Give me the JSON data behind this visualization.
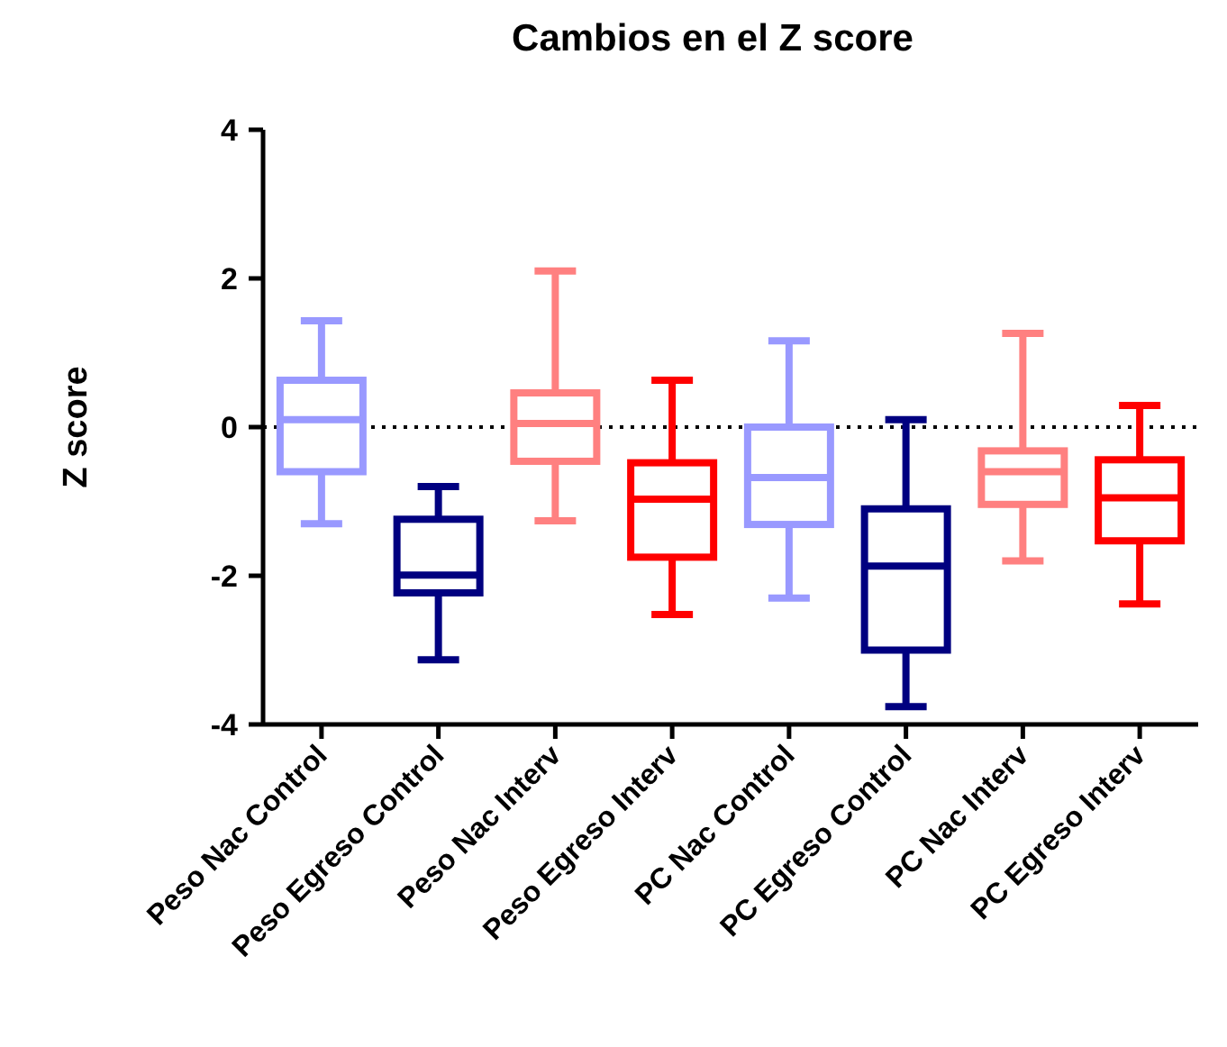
{
  "chart_data": {
    "type": "box",
    "title": "Cambios en el Z score",
    "ylabel": "Z score",
    "categories": [
      "Peso Nac Control",
      "Peso Egreso Control",
      "Peso Nac Interv",
      "Peso Egreso Interv",
      "PC Nac Control",
      "PC Egreso Control",
      "PC Nac Interv",
      "PC Egreso Interv"
    ],
    "colors": [
      "#9999ff",
      "#000080",
      "#ff8080",
      "#ff0000",
      "#9999ff",
      "#000080",
      "#ff8080",
      "#ff0000"
    ],
    "boxes": [
      {
        "low": -1.3,
        "q1": -0.6,
        "median": 0.1,
        "q3": 0.63,
        "high": 1.43
      },
      {
        "low": -3.13,
        "q1": -2.23,
        "median": -1.99,
        "q3": -1.24,
        "high": -0.8
      },
      {
        "low": -1.26,
        "q1": -0.46,
        "median": 0.05,
        "q3": 0.46,
        "high": 2.1
      },
      {
        "low": -2.52,
        "q1": -1.75,
        "median": -0.97,
        "q3": -0.48,
        "high": 0.63
      },
      {
        "low": -2.3,
        "q1": -1.31,
        "median": -0.68,
        "q3": 0,
        "high": 1.16
      },
      {
        "low": -3.76,
        "q1": -3.0,
        "median": -1.87,
        "q3": -1.1,
        "high": 0.1
      },
      {
        "low": -1.8,
        "q1": -1.04,
        "median": -0.6,
        "q3": -0.32,
        "high": 1.26
      },
      {
        "low": -2.38,
        "q1": -1.53,
        "median": -0.95,
        "q3": -0.44,
        "high": 0.29
      }
    ],
    "ylim": [
      -4,
      4
    ],
    "yticks": [
      -4,
      -2,
      0,
      2,
      4
    ],
    "ref_lines": [
      {
        "axis": "y",
        "value": 0,
        "color": "#000000",
        "line_style": "dotted"
      }
    ]
  }
}
